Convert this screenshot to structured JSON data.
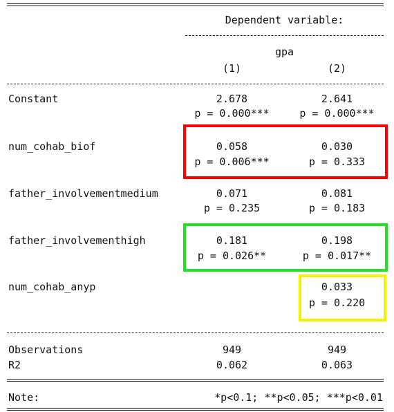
{
  "table": {
    "dep_var_label": "Dependent variable:",
    "dep_var_name": "gpa",
    "columns": [
      "(1)",
      "(2)"
    ],
    "rows": [
      {
        "label": "Constant",
        "col1": {
          "coef": "2.678",
          "p": "p = 0.000***"
        },
        "col2": {
          "coef": "2.641",
          "p": "p = 0.000***"
        }
      },
      {
        "label": "num_cohab_biof",
        "col1": {
          "coef": "0.058",
          "p": "p = 0.006***"
        },
        "col2": {
          "coef": "0.030",
          "p": "p = 0.333"
        }
      },
      {
        "label": "father_involvementmedium",
        "col1": {
          "coef": "0.071",
          "p": "p = 0.235"
        },
        "col2": {
          "coef": "0.081",
          "p": "p = 0.183"
        }
      },
      {
        "label": "father_involvementhigh",
        "col1": {
          "coef": "0.181",
          "p": "p = 0.026**"
        },
        "col2": {
          "coef": "0.198",
          "p": "p = 0.017**"
        }
      },
      {
        "label": "num_cohab_anyp",
        "col1": {
          "coef": "",
          "p": ""
        },
        "col2": {
          "coef": "0.033",
          "p": "p = 0.220"
        }
      }
    ],
    "stats": [
      {
        "label": "Observations",
        "col1": "949",
        "col2": "949"
      },
      {
        "label": "R2",
        "col1": "0.062",
        "col2": "0.063"
      }
    ],
    "note_label": "Note:",
    "note_text": "*p<0.1; **p<0.05; ***p<0.01"
  },
  "highlights": {
    "red": "#ff0000",
    "green": "#22e022",
    "yellow": "#f2f200"
  }
}
